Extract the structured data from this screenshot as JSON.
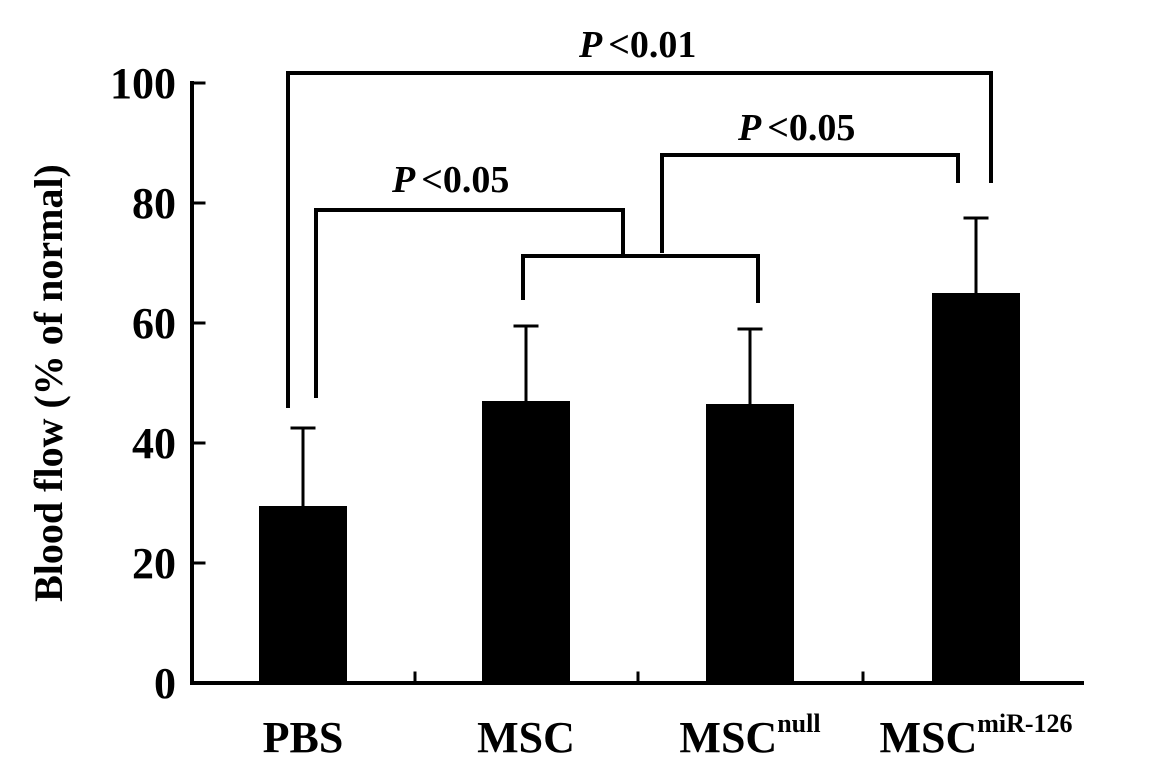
{
  "chart_data": {
    "type": "bar",
    "title": "",
    "xlabel": "",
    "ylabel": "Blood flow (% of normal)",
    "ylim": [
      0,
      100
    ],
    "yticks": [
      0,
      20,
      40,
      60,
      80,
      100
    ],
    "grid": false,
    "bar_color": "#000000",
    "categories": [
      {
        "base": "PBS",
        "sup": ""
      },
      {
        "base": "MSC",
        "sup": ""
      },
      {
        "base": "MSC",
        "sup": "null"
      },
      {
        "base": "MSC",
        "sup": "miR-126"
      }
    ],
    "values": [
      29.5,
      47,
      46.5,
      65
    ],
    "errors": [
      13,
      12.5,
      12.5,
      12.5
    ],
    "significance": [
      {
        "label_p": "P",
        "label_rest": "<0.01",
        "comparison": "PBS vs MSC miR-126"
      },
      {
        "label_p": "P",
        "label_rest": "<0.05",
        "comparison": "PBS vs MSC / MSC null"
      },
      {
        "label_p": "P",
        "label_rest": "<0.05",
        "comparison": "MSC / MSC null vs MSC miR-126"
      }
    ]
  }
}
